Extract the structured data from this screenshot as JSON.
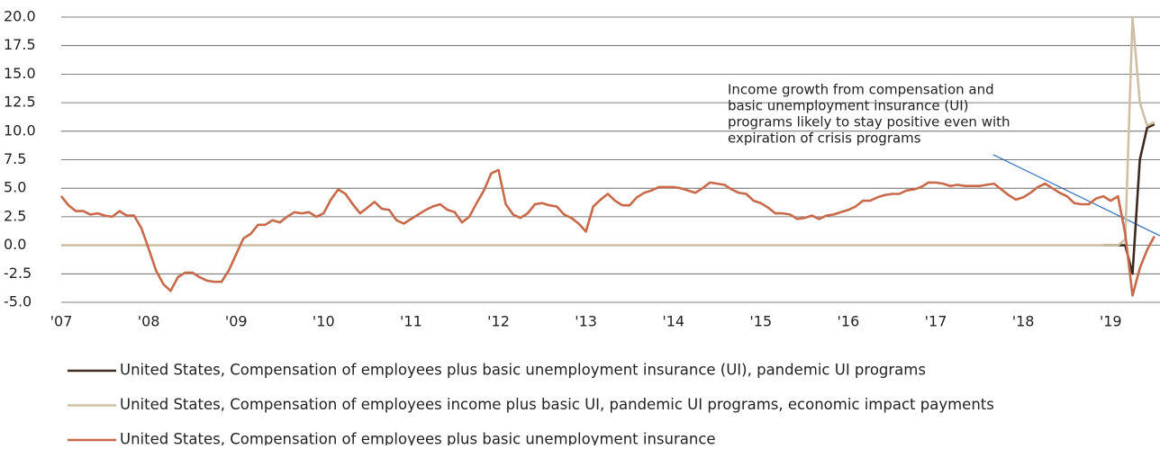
{
  "chart_data": {
    "type": "line",
    "annotation": [
      "Income growth from compensation and",
      "basic unemployment insurance (UI)",
      "programs likely to stay positive even with",
      "expiration of crisis programs"
    ],
    "categories": [
      "'07",
      null,
      null,
      null,
      null,
      null,
      null,
      null,
      null,
      null,
      null,
      null,
      "'08",
      null,
      null,
      null,
      null,
      null,
      null,
      null,
      null,
      null,
      null,
      null,
      "'09",
      null,
      null,
      null,
      null,
      null,
      null,
      null,
      null,
      null,
      null,
      null,
      "'10",
      null,
      null,
      null,
      null,
      null,
      null,
      null,
      null,
      null,
      null,
      null,
      "'11",
      null,
      null,
      null,
      null,
      null,
      null,
      null,
      null,
      null,
      null,
      null,
      "'12",
      null,
      null,
      null,
      null,
      null,
      null,
      null,
      null,
      null,
      null,
      null,
      "'13",
      null,
      null,
      null,
      null,
      null,
      null,
      null,
      null,
      null,
      null,
      null,
      "'14",
      null,
      null,
      null,
      null,
      null,
      null,
      null,
      null,
      null,
      null,
      null,
      "'15",
      null,
      null,
      null,
      null,
      null,
      null,
      null,
      null,
      null,
      null,
      null,
      "'16",
      null,
      null,
      null,
      null,
      null,
      null,
      null,
      null,
      null,
      null,
      null,
      "'17",
      null,
      null,
      null,
      null,
      null,
      null,
      null,
      null,
      null,
      null,
      null,
      "'18",
      null,
      null,
      null,
      null,
      null,
      null,
      null,
      null,
      null,
      null,
      null,
      "'19",
      null,
      null,
      null,
      null,
      null,
      null
    ],
    "series": [
      {
        "name": "United States, Compensation of employees plus basic unemployment insurance (UI), pandemic UI programs",
        "color": "#3d2b22",
        "values": [
          null,
          null,
          null,
          null,
          null,
          null,
          null,
          null,
          null,
          null,
          null,
          null,
          null,
          null,
          null,
          null,
          null,
          null,
          null,
          null,
          null,
          null,
          null,
          null,
          null,
          null,
          null,
          null,
          null,
          null,
          null,
          null,
          null,
          null,
          null,
          null,
          null,
          null,
          null,
          null,
          null,
          null,
          null,
          null,
          null,
          null,
          null,
          null,
          null,
          null,
          null,
          null,
          null,
          null,
          null,
          null,
          null,
          null,
          null,
          null,
          null,
          null,
          null,
          null,
          null,
          null,
          null,
          null,
          null,
          null,
          null,
          null,
          null,
          null,
          null,
          null,
          null,
          null,
          null,
          null,
          null,
          null,
          null,
          null,
          null,
          null,
          null,
          null,
          null,
          null,
          null,
          null,
          null,
          null,
          null,
          null,
          null,
          null,
          null,
          null,
          null,
          null,
          null,
          null,
          null,
          null,
          null,
          null,
          null,
          null,
          null,
          null,
          null,
          null,
          null,
          null,
          null,
          null,
          null,
          null,
          null,
          null,
          null,
          null,
          null,
          null,
          null,
          null,
          null,
          null,
          null,
          null,
          null,
          null,
          null,
          null,
          null,
          null,
          null,
          null,
          null,
          null,
          null,
          0,
          0,
          0,
          0,
          -2.5,
          7.5,
          10.3,
          10.6
        ]
      },
      {
        "name": "United States, Compensation of employees income plus basic UI, pandemic UI programs, economic impact payments",
        "color": "#cfc0a5",
        "values": [
          0,
          0,
          0,
          0,
          0,
          0,
          0,
          0,
          0,
          0,
          0,
          0,
          0,
          0,
          0,
          0,
          0,
          0,
          0,
          0,
          0,
          0,
          0,
          0,
          0,
          0,
          0,
          0,
          0,
          0,
          0,
          0,
          0,
          0,
          0,
          0,
          0,
          0,
          0,
          0,
          0,
          0,
          0,
          0,
          0,
          0,
          0,
          0,
          0,
          0,
          0,
          0,
          0,
          0,
          0,
          0,
          0,
          0,
          0,
          0,
          0,
          0,
          0,
          0,
          0,
          0,
          0,
          0,
          0,
          0,
          0,
          0,
          0,
          0,
          0,
          0,
          0,
          0,
          0,
          0,
          0,
          0,
          0,
          0,
          0,
          0,
          0,
          0,
          0,
          0,
          0,
          0,
          0,
          0,
          0,
          0,
          0,
          0,
          0,
          0,
          0,
          0,
          0,
          0,
          0,
          0,
          0,
          0,
          0,
          0,
          0,
          0,
          0,
          0,
          0,
          0,
          0,
          0,
          0,
          0,
          0,
          0,
          0,
          0,
          0,
          0,
          0,
          0,
          0,
          0,
          0,
          0,
          0,
          0,
          0,
          0,
          0,
          0,
          0,
          0,
          0,
          0,
          0,
          0,
          0,
          0,
          0.5,
          20.0,
          12.5,
          10.5,
          10.8
        ]
      },
      {
        "name": "United States, Compensation of employees plus basic unemployment insurance",
        "color": "#c8694a",
        "values": [
          4.3,
          3.5,
          3.0,
          3.0,
          2.7,
          2.8,
          2.6,
          2.5,
          3.0,
          2.6,
          2.6,
          1.5,
          -0.3,
          -2.2,
          -3.4,
          -4.0,
          -2.8,
          -2.4,
          -2.4,
          -2.8,
          -3.1,
          -3.2,
          -3.2,
          -2.2,
          -0.8,
          0.6,
          1.0,
          1.8,
          1.8,
          2.2,
          2.0,
          2.5,
          2.9,
          2.8,
          2.9,
          2.5,
          2.8,
          4.0,
          4.9,
          4.5,
          3.6,
          2.8,
          3.3,
          3.8,
          3.2,
          3.1,
          2.2,
          1.9,
          2.3,
          2.7,
          3.1,
          3.4,
          3.6,
          3.1,
          2.9,
          2.0,
          2.5,
          3.7,
          4.8,
          6.3,
          6.6,
          3.6,
          2.7,
          2.4,
          2.8,
          3.6,
          3.7,
          3.5,
          3.4,
          2.7,
          2.4,
          1.9,
          1.2,
          3.4,
          4.0,
          4.5,
          3.9,
          3.5,
          3.5,
          4.2,
          4.6,
          4.8,
          5.1,
          5.1,
          5.1,
          5.0,
          4.8,
          4.6,
          5.0,
          5.5,
          5.4,
          5.3,
          4.9,
          4.6,
          4.5,
          3.9,
          3.7,
          3.3,
          2.8,
          2.8,
          2.7,
          2.3,
          2.4,
          2.6,
          2.3,
          2.6,
          2.7,
          2.9,
          3.1,
          3.4,
          3.9,
          3.9,
          4.2,
          4.4,
          4.5,
          4.5,
          4.8,
          4.9,
          5.1,
          5.5,
          5.5,
          5.4,
          5.2,
          5.3,
          5.2,
          5.2,
          5.2,
          5.3,
          5.4,
          4.9,
          4.4,
          4.0,
          4.2,
          4.6,
          5.1,
          5.4,
          5.0,
          4.6,
          4.3,
          3.7,
          3.6,
          3.6,
          4.1,
          4.3,
          3.9,
          4.3,
          1.0,
          -4.4,
          -2.0,
          -0.4,
          0.8
        ]
      }
    ],
    "ylim": [
      -5,
      20
    ],
    "yticks": [
      {
        "value": -5,
        "label": "-5.0"
      },
      -2.5,
      {
        "value": 0,
        "label": "0.0"
      },
      2.5,
      {
        "value": 5,
        "label": "5.0"
      },
      7.5,
      {
        "value": 10,
        "label": "10.0"
      },
      12.5,
      {
        "value": 15,
        "label": "15.0"
      },
      17.5,
      {
        "value": 20,
        "label": "20.0"
      }
    ],
    "grid": true
  }
}
